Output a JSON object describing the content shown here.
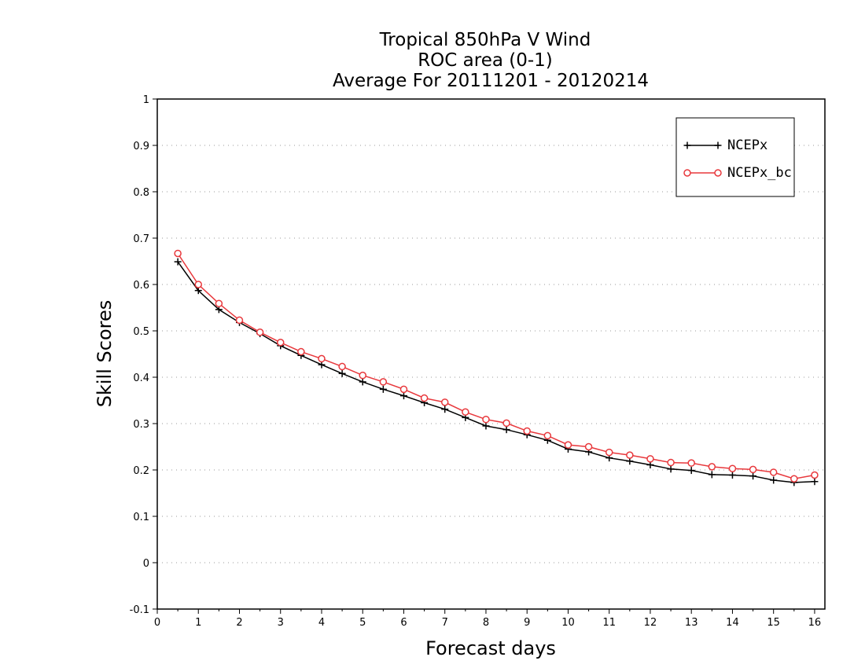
{
  "chart_data": {
    "type": "line",
    "title_lines": [
      "Tropical 850hPa V Wind",
      "ROC area (0-1)",
      "Average For 20111201 - 20120214"
    ],
    "xlabel": "Forecast days",
    "ylabel": "Skill Scores",
    "xlim": [
      0,
      16.25
    ],
    "ylim": [
      -0.1,
      1
    ],
    "xticks": [
      0,
      1,
      2,
      3,
      4,
      5,
      6,
      7,
      8,
      9,
      10,
      11,
      12,
      13,
      14,
      15,
      16
    ],
    "yticks": [
      -0.1,
      0,
      0.1,
      0.2,
      0.3,
      0.4,
      0.5,
      0.6,
      0.7,
      0.8,
      0.9,
      1
    ],
    "ytick_labels": [
      "-0.1",
      "0",
      "0.1",
      "0.2",
      "0.3",
      "0.4",
      "0.5",
      "0.6",
      "0.7",
      "0.8",
      "0.9",
      "1"
    ],
    "grid": "horizontal-dotted",
    "legend_position": "top-right",
    "x": [
      0.5,
      1,
      1.5,
      2,
      2.5,
      3,
      3.5,
      4,
      4.5,
      5,
      5.5,
      6,
      6.5,
      7,
      7.5,
      8,
      8.5,
      9,
      9.5,
      10,
      10.5,
      11,
      11.5,
      12,
      12.5,
      13,
      13.5,
      14,
      14.5,
      15,
      15.5,
      16
    ],
    "series": [
      {
        "name": "NCEPx",
        "color": "#000000",
        "marker": "plus",
        "values": [
          0.649,
          0.587,
          0.546,
          0.518,
          0.494,
          0.468,
          0.447,
          0.427,
          0.408,
          0.39,
          0.374,
          0.36,
          0.345,
          0.331,
          0.313,
          0.295,
          0.287,
          0.276,
          0.264,
          0.245,
          0.239,
          0.226,
          0.219,
          0.211,
          0.202,
          0.199,
          0.19,
          0.189,
          0.187,
          0.178,
          0.173,
          0.175
        ]
      },
      {
        "name": "NCEPx_bc",
        "color": "#e8383c",
        "marker": "circle",
        "values": [
          0.667,
          0.6,
          0.559,
          0.523,
          0.497,
          0.475,
          0.455,
          0.44,
          0.423,
          0.404,
          0.39,
          0.374,
          0.355,
          0.346,
          0.325,
          0.309,
          0.301,
          0.284,
          0.274,
          0.254,
          0.25,
          0.238,
          0.232,
          0.224,
          0.216,
          0.215,
          0.207,
          0.203,
          0.201,
          0.195,
          0.181,
          0.189
        ]
      }
    ]
  }
}
